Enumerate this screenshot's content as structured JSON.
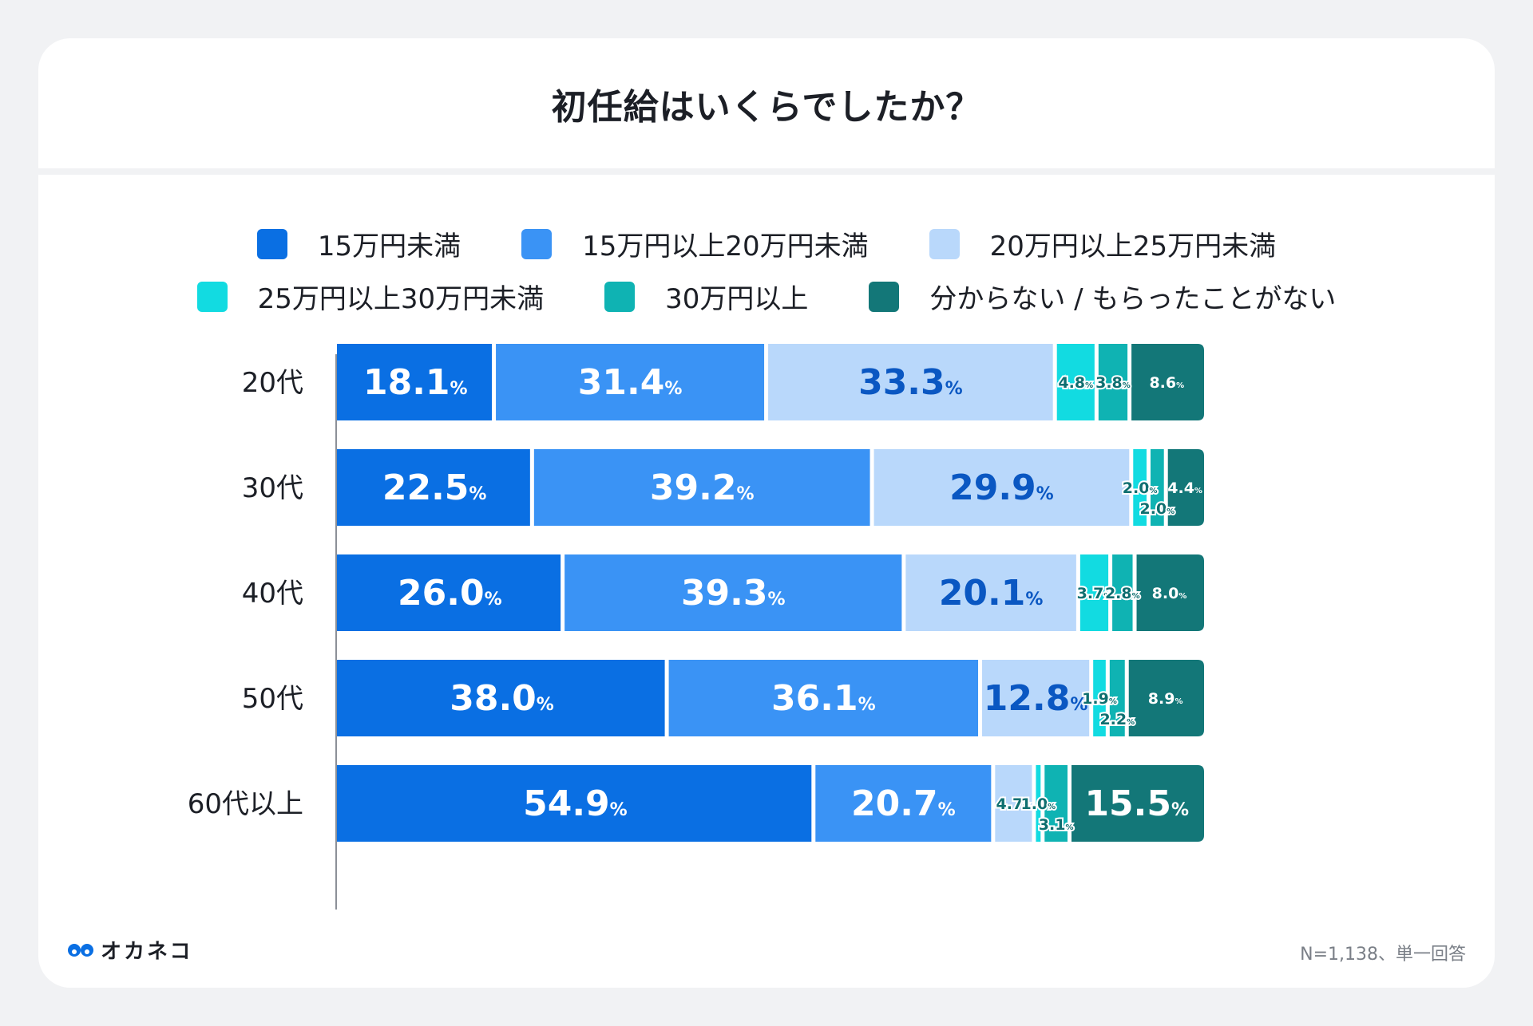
{
  "chart_data": {
    "type": "bar",
    "orientation": "horizontal",
    "stacked": true,
    "title": "初任給はいくらでしたか？",
    "categories": [
      "20代",
      "30代",
      "40代",
      "50代",
      "60代以上"
    ],
    "series": [
      {
        "name": "15万円未満",
        "color": "#0a6fe3",
        "values": [
          18.1,
          22.5,
          26.0,
          38.0,
          54.9
        ]
      },
      {
        "name": "15万円以上20万円未満",
        "color": "#3a93f5",
        "values": [
          31.4,
          39.2,
          39.3,
          36.1,
          20.7
        ]
      },
      {
        "name": "20万円以上25万円未満",
        "color": "#b9d8fb",
        "values": [
          33.3,
          29.9,
          20.1,
          12.8,
          4.7
        ]
      },
      {
        "name": "25万円以上30万円未満",
        "color": "#12dbe1",
        "values": [
          4.8,
          2.0,
          3.7,
          1.9,
          1.0
        ]
      },
      {
        "name": "30万円以上",
        "color": "#0fb3b3",
        "values": [
          3.8,
          2.0,
          2.8,
          2.2,
          3.1
        ]
      },
      {
        "name": "分からない / もらったことがない",
        "color": "#137778",
        "values": [
          8.6,
          4.4,
          8.0,
          8.9,
          15.5
        ]
      }
    ],
    "label_suffix": "%",
    "xlim": [
      0,
      100
    ],
    "legend": "top",
    "grid": false
  },
  "legend_rows": [
    [
      0,
      1,
      2
    ],
    [
      3,
      4,
      5
    ]
  ],
  "brand": {
    "name": "オカネコ",
    "color": "#0a6fe3"
  },
  "footnote": "N=1,138、単一回答"
}
